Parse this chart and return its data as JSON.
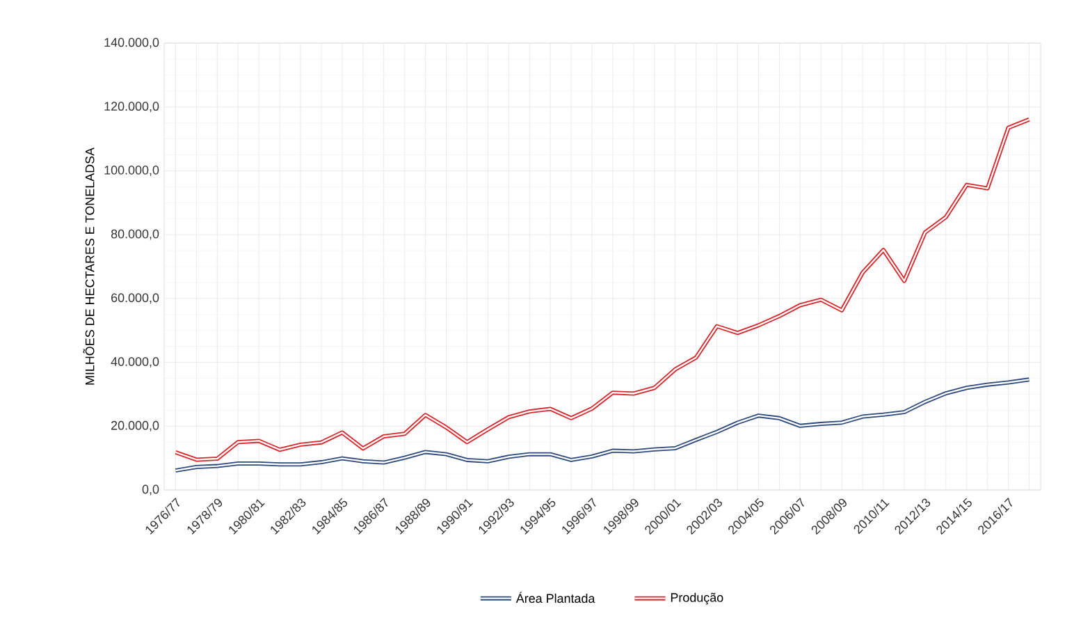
{
  "chart_data": {
    "type": "line",
    "ylabel": "MILHÕES DE HECTARES E TONELADSA",
    "categories": [
      "1976/77",
      null,
      "1978/79",
      null,
      "1980/81",
      null,
      "1982/83",
      null,
      "1984/85",
      null,
      "1986/87",
      null,
      "1988/89",
      null,
      "1990/91",
      null,
      "1992/93",
      null,
      "1994/95",
      null,
      "1996/97",
      null,
      "1998/99",
      null,
      "2000/01",
      null,
      "2002/03",
      null,
      "2004/05",
      null,
      "2006/07",
      null,
      "2008/09",
      null,
      "2010/11",
      null,
      "2012/13",
      null,
      "2014/15",
      null,
      "2016/17",
      null
    ],
    "series": [
      {
        "name": "Área Plantada",
        "color": "#2e4a7d",
        "values": [
          6100,
          7200,
          7500,
          8300,
          8300,
          8000,
          8000,
          8700,
          9900,
          9000,
          8600,
          10100,
          11900,
          11200,
          9400,
          9000,
          10400,
          11200,
          11200,
          9400,
          10500,
          12300,
          12100,
          12700,
          13100,
          15700,
          18200,
          21100,
          23300,
          22500,
          20100,
          20700,
          21100,
          23000,
          23600,
          24400,
          27600,
          30300,
          32000,
          33000,
          33700,
          34600
        ]
      },
      {
        "name": "Produção",
        "color": "#d9262b",
        "values": [
          11800,
          9500,
          9800,
          15000,
          15400,
          12600,
          14200,
          14900,
          18000,
          13000,
          16800,
          17600,
          23500,
          19600,
          15000,
          19000,
          22800,
          24600,
          25400,
          22500,
          25500,
          30500,
          30200,
          32000,
          37800,
          41500,
          51300,
          49200,
          51600,
          54500,
          57900,
          59600,
          56300,
          68100,
          75200,
          65500,
          80700,
          85500,
          95600,
          94500,
          113500,
          116100
        ]
      }
    ],
    "ylim": [
      0,
      140000
    ],
    "yticks": [
      {
        "value": 0,
        "label": "0,0"
      },
      {
        "value": 20000,
        "label": "20.000,0"
      },
      {
        "value": 40000,
        "label": "40.000,0"
      },
      {
        "value": 60000,
        "label": "60.000,0"
      },
      {
        "value": 80000,
        "label": "80.000,0"
      },
      {
        "value": 100000,
        "label": "100.000,0"
      },
      {
        "value": 120000,
        "label": "120.000,0"
      },
      {
        "value": 140000,
        "label": "140.000,0"
      }
    ],
    "grid": true,
    "legend": "bottom",
    "marker": "none",
    "line_style": "solid"
  }
}
